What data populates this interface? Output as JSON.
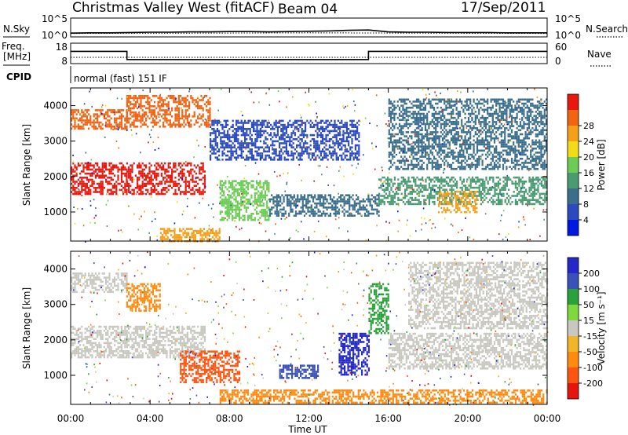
{
  "header": {
    "title": "Christmas Valley West (fitACF)",
    "beam": "Beam 04",
    "date": "17/Sep/2011"
  },
  "strip_labels": {
    "nsky": "N.Sky",
    "nsearch": "N.Search",
    "freq_line1": "Freq.",
    "freq_line2": "[MHz]",
    "nave": "Nave",
    "cpid": "CPID",
    "cpid_value": "normal (fast) 151 IF",
    "noise_ticks": [
      "10^5",
      "10^0"
    ],
    "freq_ticks": [
      "18",
      "8"
    ],
    "nave_ticks": [
      "60",
      "0"
    ]
  },
  "colors": {
    "power": [
      "#0018e0",
      "#2c4ac0",
      "#3a6e8c",
      "#4a9a72",
      "#6ccc55",
      "#f2dc18",
      "#f4a018",
      "#f26414",
      "#e8180e"
    ],
    "velocity": [
      "#2428c8",
      "#3a52b8",
      "#2aa23a",
      "#7ed83e",
      "#c8c8c0",
      "#f2b428",
      "#ff8a10",
      "#ff5510",
      "#e6140e"
    ]
  },
  "chart_data": [
    {
      "type": "line",
      "name": "noise_panel",
      "series": [
        {
          "name": "N.Sky",
          "x": [
            "00:00",
            "01:00",
            "02:00",
            "03:00",
            "04:00",
            "05:00",
            "06:00",
            "07:00",
            "08:00",
            "09:00",
            "10:00",
            "11:00",
            "12:00",
            "13:00",
            "14:00",
            "15:00",
            "16:00",
            "17:00",
            "18:00",
            "19:00",
            "20:00",
            "21:00",
            "22:00",
            "23:00",
            "00:00"
          ],
          "y": [
            0.2,
            0.3,
            0.3,
            0.4,
            0.5,
            0.5,
            0.6,
            0.6,
            0.7,
            0.7,
            0.6,
            0.7,
            0.8,
            0.9,
            1.1,
            1.2,
            0.6,
            0.5,
            0.5,
            0.4,
            0.4,
            0.4,
            0.3,
            0.3,
            0.3
          ]
        },
        {
          "name": "N.Search",
          "x": [
            "00:00",
            "06:00",
            "12:00",
            "18:00",
            "00:00"
          ],
          "y": [
            0.1,
            0.2,
            0.3,
            0.2,
            0.1
          ]
        }
      ],
      "yticks": [
        "10^0",
        "10^5"
      ]
    },
    {
      "type": "line",
      "name": "frequency_nave_panel",
      "series": [
        {
          "name": "Freq.",
          "unit": "MHz",
          "x": [
            "00:00",
            "02:50",
            "02:50",
            "15:00",
            "15:00",
            "00:00"
          ],
          "y": [
            14,
            14,
            10,
            10,
            14,
            14
          ]
        },
        {
          "name": "Nave",
          "x": [
            "00:00",
            "00:00"
          ],
          "y": [
            12,
            12
          ]
        }
      ],
      "yticks_left": [
        "8",
        "18"
      ],
      "yticks_right": [
        "0",
        "60"
      ]
    },
    {
      "type": "heatmap",
      "name": "power",
      "xlabel": "",
      "ylabel": "Slant Range [km]",
      "xlim": [
        "00:00",
        "24:00"
      ],
      "ylim": [
        180,
        4500
      ],
      "yticks": [
        1000,
        2000,
        3000,
        4000
      ],
      "colorbar_label": "Power [dB]",
      "colorbar_ticks": [
        4,
        8,
        12,
        16,
        20,
        24,
        28
      ],
      "features": [
        {
          "t": [
            0.0,
            2.8
          ],
          "range_km": [
            3350,
            3900
          ],
          "level_db": 26
        },
        {
          "t": [
            0.0,
            2.8
          ],
          "range_km": [
            1500,
            2400
          ],
          "level_db": 30
        },
        {
          "t": [
            2.8,
            7.0
          ],
          "range_km": [
            3400,
            4300
          ],
          "level_db": 25
        },
        {
          "t": [
            2.8,
            6.8
          ],
          "range_km": [
            1500,
            2400
          ],
          "level_db": 28
        },
        {
          "t": [
            4.5,
            7.5
          ],
          "range_km": [
            200,
            550
          ],
          "level_db": 24
        },
        {
          "t": [
            7.5,
            10.0
          ],
          "range_km": [
            800,
            1900
          ],
          "level_db": 14
        },
        {
          "t": [
            10.0,
            15.5
          ],
          "range_km": [
            900,
            1500
          ],
          "level_db": 8
        },
        {
          "t": [
            7.0,
            14.5
          ],
          "range_km": [
            2500,
            3600
          ],
          "level_db": 6
        },
        {
          "t": [
            15.5,
            24.0
          ],
          "range_km": [
            1200,
            2000
          ],
          "level_db": 12
        },
        {
          "t": [
            16.0,
            24.0
          ],
          "range_km": [
            2200,
            4200
          ],
          "level_db": 10
        },
        {
          "t": [
            18.5,
            20.5
          ],
          "range_km": [
            1000,
            1600
          ],
          "level_db": 22
        }
      ]
    },
    {
      "type": "heatmap",
      "name": "velocity",
      "xlabel": "Time UT",
      "ylabel": "Slant Range [km]",
      "xlim": [
        "00:00",
        "24:00"
      ],
      "ylim": [
        180,
        4500
      ],
      "yticks": [
        1000,
        2000,
        3000,
        4000
      ],
      "xticks": [
        "00:00",
        "04:00",
        "08:00",
        "12:00",
        "16:00",
        "20:00",
        "00:00"
      ],
      "colorbar_label": "Velocity [m s⁻¹]",
      "colorbar_ticks": [
        200,
        100,
        50,
        15,
        -15,
        -50,
        -100,
        -200
      ],
      "features": [
        {
          "t": [
            0.0,
            2.8
          ],
          "range_km": [
            1500,
            2400
          ],
          "vel": 0
        },
        {
          "t": [
            0.0,
            2.8
          ],
          "range_km": [
            3350,
            3900
          ],
          "vel": 0
        },
        {
          "t": [
            2.8,
            6.8
          ],
          "range_km": [
            1500,
            2400
          ],
          "vel": 0
        },
        {
          "t": [
            2.8,
            4.5
          ],
          "range_km": [
            2800,
            3600
          ],
          "vel": -60
        },
        {
          "t": [
            5.5,
            8.5
          ],
          "range_km": [
            800,
            1700
          ],
          "vel": -150
        },
        {
          "t": [
            7.5,
            24.0
          ],
          "range_km": [
            200,
            600
          ],
          "vel": -60
        },
        {
          "t": [
            10.5,
            12.5
          ],
          "range_km": [
            900,
            1300
          ],
          "vel": 120
        },
        {
          "t": [
            13.5,
            15.0
          ],
          "range_km": [
            1000,
            2200
          ],
          "vel": 220
        },
        {
          "t": [
            15.0,
            16.0
          ],
          "range_km": [
            2200,
            3600
          ],
          "vel": 40
        },
        {
          "t": [
            16.0,
            24.0
          ],
          "range_km": [
            1200,
            2200
          ],
          "vel": 0
        },
        {
          "t": [
            17.0,
            24.0
          ],
          "range_km": [
            2300,
            4200
          ],
          "vel": 0
        }
      ]
    }
  ]
}
